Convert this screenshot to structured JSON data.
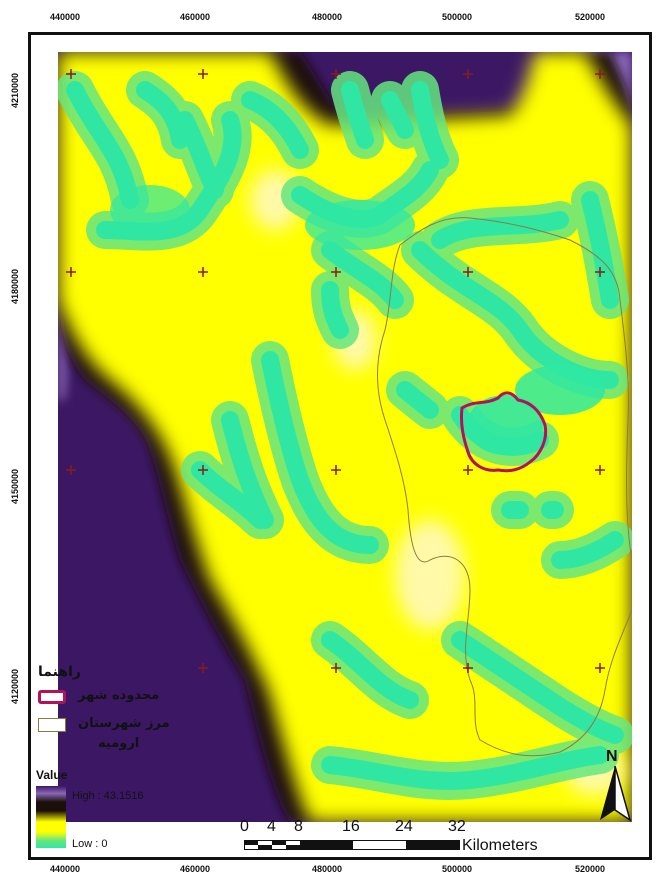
{
  "map": {
    "x_ticks": [
      "440000",
      "460000",
      "480000",
      "500000",
      "520000"
    ],
    "y_ticks": [
      "4210000",
      "4180000",
      "4150000",
      "4120000"
    ],
    "colors": {
      "low": "#2fe7a3",
      "mid_green": "#66e680",
      "mid": "#ffff00",
      "pale": "#fff9a8",
      "dark": "#1a0f0a",
      "high": "#3c1864",
      "edge": "#8a68b8",
      "city_boundary": "#b3125a",
      "county_border": "#8c7b40",
      "grid_cross": "#8a1a1a"
    }
  },
  "legend": {
    "title": "راهنما",
    "city_boundary_label": "محدوده شهر",
    "county_border_label": "مرز شهرستان",
    "county_name": "ارومیه"
  },
  "raster_legend": {
    "title": "Value",
    "high_label": "High : 43.1516",
    "low_label": "Low : 0",
    "high_value": 43.1516,
    "low_value": 0
  },
  "scale_bar": {
    "labels": [
      "0",
      "4",
      "8",
      "16",
      "24",
      "32"
    ],
    "unit": "Kilometers"
  },
  "north_arrow": {
    "label": "N"
  }
}
